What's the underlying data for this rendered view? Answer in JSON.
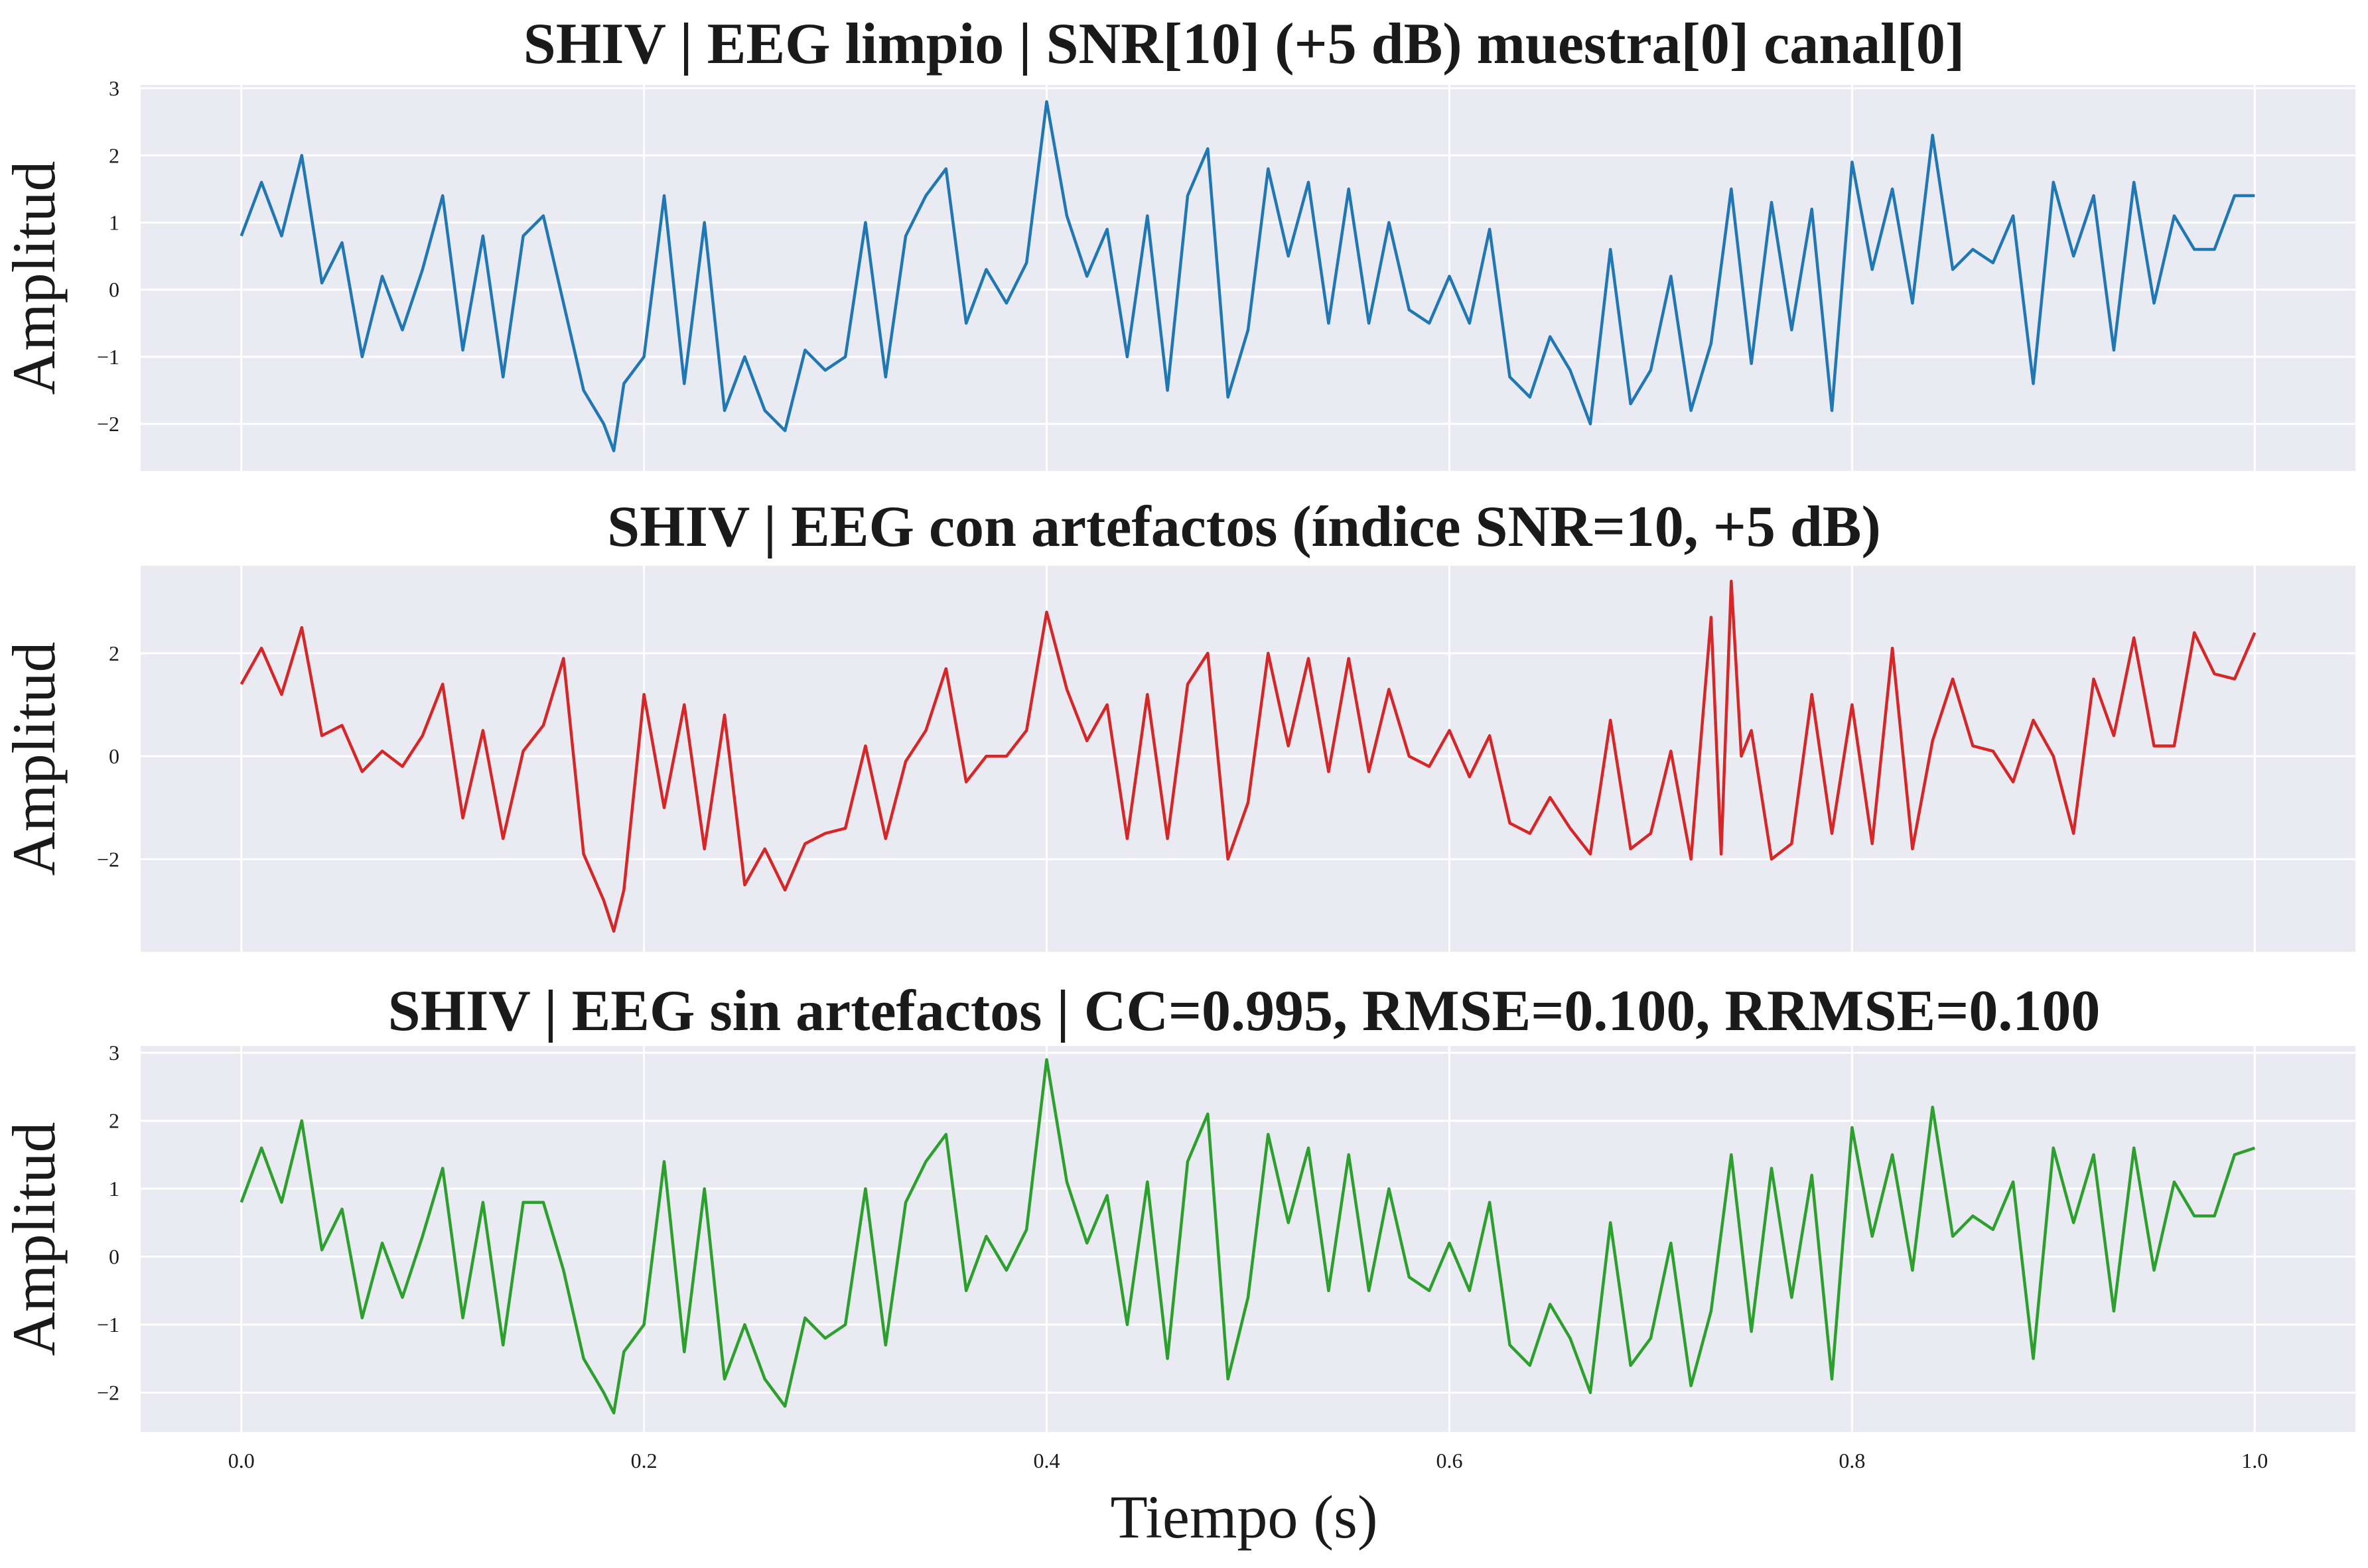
{
  "chart_data": [
    {
      "type": "line",
      "title": "SHIV | EEG limpio | SNR[10] (+5 dB) muestra[0] canal[0]",
      "xlabel": "",
      "ylabel": "Amplitud",
      "xlim": [
        -0.05,
        1.05
      ],
      "ylim": [
        -2.7,
        3.05
      ],
      "xticks": [
        0.0,
        0.2,
        0.4,
        0.6,
        0.8,
        1.0
      ],
      "xtick_labels": [
        "",
        "",
        "",
        "",
        "",
        ""
      ],
      "yticks": [
        -2,
        -1,
        0,
        1,
        2,
        3
      ],
      "ytick_labels": [
        "−2",
        "−1",
        "0",
        "1",
        "2",
        "3"
      ],
      "grid": true,
      "color": "#1f77b4",
      "series": [
        {
          "x": [
            0.0,
            0.01,
            0.02,
            0.03,
            0.04,
            0.05,
            0.06,
            0.07,
            0.08,
            0.09,
            0.1,
            0.11,
            0.12,
            0.13,
            0.14,
            0.15,
            0.16,
            0.17,
            0.18,
            0.185,
            0.19,
            0.2,
            0.21,
            0.22,
            0.23,
            0.24,
            0.25,
            0.26,
            0.27,
            0.28,
            0.29,
            0.3,
            0.31,
            0.32,
            0.33,
            0.34,
            0.35,
            0.36,
            0.37,
            0.38,
            0.39,
            0.4,
            0.41,
            0.42,
            0.43,
            0.44,
            0.45,
            0.46,
            0.47,
            0.48,
            0.49,
            0.5,
            0.51,
            0.52,
            0.53,
            0.54,
            0.55,
            0.56,
            0.57,
            0.58,
            0.59,
            0.6,
            0.61,
            0.62,
            0.63,
            0.64,
            0.65,
            0.66,
            0.67,
            0.68,
            0.69,
            0.7,
            0.71,
            0.72,
            0.73,
            0.74,
            0.75,
            0.76,
            0.77,
            0.78,
            0.79,
            0.8,
            0.81,
            0.82,
            0.83,
            0.84,
            0.85,
            0.86,
            0.87,
            0.88,
            0.89,
            0.9,
            0.91,
            0.92,
            0.93,
            0.94,
            0.95,
            0.96,
            0.97,
            0.98,
            0.99,
            1.0
          ],
          "y": [
            0.8,
            1.6,
            0.8,
            2.0,
            0.1,
            0.7,
            -1.0,
            0.2,
            -0.6,
            0.3,
            1.4,
            -0.9,
            0.8,
            -1.3,
            0.8,
            1.1,
            -0.2,
            -1.5,
            -2.0,
            -2.4,
            -1.4,
            -1.0,
            1.4,
            -1.4,
            1.0,
            -1.8,
            -1.0,
            -1.8,
            -2.1,
            -0.9,
            -1.2,
            -1.0,
            1.0,
            -1.3,
            0.8,
            1.4,
            1.8,
            -0.5,
            0.3,
            -0.2,
            0.4,
            2.8,
            1.1,
            0.2,
            0.9,
            -1.0,
            1.1,
            -1.5,
            1.4,
            2.1,
            -1.6,
            -0.6,
            1.8,
            0.5,
            1.6,
            -0.5,
            1.5,
            -0.5,
            1.0,
            -0.3,
            -0.5,
            0.2,
            -0.5,
            0.9,
            -1.3,
            -1.6,
            -0.7,
            -1.2,
            -2.0,
            0.6,
            -1.7,
            -1.2,
            0.2,
            -1.8,
            -0.8,
            1.5,
            -1.1,
            1.3,
            -0.6,
            1.2,
            -1.8,
            1.9,
            0.3,
            1.5,
            -0.2,
            2.3,
            0.3,
            0.6,
            0.4,
            1.1,
            -1.4,
            1.6,
            0.5,
            1.4,
            -0.9,
            1.6,
            -0.2,
            1.1,
            0.6,
            0.6,
            1.4,
            1.4
          ]
        }
      ]
    },
    {
      "type": "line",
      "title": "SHIV | EEG con artefactos (índice SNR=10, +5 dB)",
      "xlabel": "",
      "ylabel": "Amplitud",
      "xlim": [
        -0.05,
        1.05
      ],
      "ylim": [
        -3.8,
        3.7
      ],
      "xticks": [
        0.0,
        0.2,
        0.4,
        0.6,
        0.8,
        1.0
      ],
      "xtick_labels": [
        "",
        "",
        "",
        "",
        "",
        ""
      ],
      "yticks": [
        -2,
        0,
        2
      ],
      "ytick_labels": [
        "−2",
        "0",
        "2"
      ],
      "grid": true,
      "color": "#d62728",
      "series": [
        {
          "x": [
            0.0,
            0.01,
            0.02,
            0.03,
            0.04,
            0.05,
            0.06,
            0.07,
            0.08,
            0.09,
            0.1,
            0.11,
            0.12,
            0.13,
            0.14,
            0.15,
            0.16,
            0.17,
            0.18,
            0.185,
            0.19,
            0.2,
            0.21,
            0.22,
            0.23,
            0.24,
            0.25,
            0.26,
            0.27,
            0.28,
            0.29,
            0.3,
            0.31,
            0.32,
            0.33,
            0.34,
            0.35,
            0.36,
            0.37,
            0.38,
            0.39,
            0.4,
            0.41,
            0.42,
            0.43,
            0.44,
            0.45,
            0.46,
            0.47,
            0.48,
            0.49,
            0.5,
            0.51,
            0.52,
            0.53,
            0.54,
            0.55,
            0.56,
            0.57,
            0.58,
            0.59,
            0.6,
            0.61,
            0.62,
            0.63,
            0.64,
            0.65,
            0.66,
            0.67,
            0.68,
            0.69,
            0.7,
            0.71,
            0.72,
            0.73,
            0.735,
            0.74,
            0.745,
            0.75,
            0.76,
            0.77,
            0.78,
            0.79,
            0.8,
            0.81,
            0.82,
            0.83,
            0.84,
            0.85,
            0.86,
            0.87,
            0.88,
            0.89,
            0.9,
            0.91,
            0.92,
            0.93,
            0.94,
            0.95,
            0.96,
            0.97,
            0.98,
            0.99,
            1.0
          ],
          "y": [
            1.4,
            2.1,
            1.2,
            2.5,
            0.4,
            0.6,
            -0.3,
            0.1,
            -0.2,
            0.4,
            1.4,
            -1.2,
            0.5,
            -1.6,
            0.1,
            0.6,
            1.9,
            -1.9,
            -2.8,
            -3.4,
            -2.6,
            1.2,
            -1.0,
            1.0,
            -1.8,
            0.8,
            -2.5,
            -1.8,
            -2.6,
            -1.7,
            -1.5,
            -1.4,
            0.2,
            -1.6,
            -0.1,
            0.5,
            1.7,
            -0.5,
            0.0,
            0.0,
            0.5,
            2.8,
            1.3,
            0.3,
            1.0,
            -1.6,
            1.2,
            -1.6,
            1.4,
            2.0,
            -2.0,
            -0.9,
            2.0,
            0.2,
            1.9,
            -0.3,
            1.9,
            -0.3,
            1.3,
            0.0,
            -0.2,
            0.5,
            -0.4,
            0.4,
            -1.3,
            -1.5,
            -0.8,
            -1.4,
            -1.9,
            0.7,
            -1.8,
            -1.5,
            0.1,
            -2.0,
            2.7,
            -1.9,
            3.4,
            0.0,
            0.5,
            -2.0,
            -1.7,
            1.2,
            -1.5,
            1.0,
            -1.7,
            2.1,
            -1.8,
            0.3,
            1.5,
            0.2,
            0.1,
            -0.5,
            0.7,
            0.0,
            -1.5,
            1.5,
            0.4,
            2.3,
            0.2,
            0.2,
            2.4,
            1.6,
            1.5,
            2.4
          ]
        }
      ]
    },
    {
      "type": "line",
      "title": "SHIV | EEG sin artefactos | CC=0.995, RMSE=0.100, RRMSE=0.100",
      "xlabel": "Tiempo (s)",
      "ylabel": "Amplitud",
      "xlim": [
        -0.05,
        1.05
      ],
      "ylim": [
        -2.58,
        3.1
      ],
      "xticks": [
        0.0,
        0.2,
        0.4,
        0.6,
        0.8,
        1.0
      ],
      "xtick_labels": [
        "0.0",
        "0.2",
        "0.4",
        "0.6",
        "0.8",
        "1.0"
      ],
      "yticks": [
        -2,
        -1,
        0,
        1,
        2,
        3
      ],
      "ytick_labels": [
        "−2",
        "−1",
        "0",
        "1",
        "2",
        "3"
      ],
      "grid": true,
      "color": "#2ca02c",
      "series": [
        {
          "x": [
            0.0,
            0.01,
            0.02,
            0.03,
            0.04,
            0.05,
            0.06,
            0.07,
            0.08,
            0.09,
            0.1,
            0.11,
            0.12,
            0.13,
            0.14,
            0.15,
            0.16,
            0.17,
            0.18,
            0.185,
            0.19,
            0.2,
            0.21,
            0.22,
            0.23,
            0.24,
            0.25,
            0.26,
            0.27,
            0.28,
            0.29,
            0.3,
            0.31,
            0.32,
            0.33,
            0.34,
            0.35,
            0.36,
            0.37,
            0.38,
            0.39,
            0.4,
            0.41,
            0.42,
            0.43,
            0.44,
            0.45,
            0.46,
            0.47,
            0.48,
            0.49,
            0.5,
            0.51,
            0.52,
            0.53,
            0.54,
            0.55,
            0.56,
            0.57,
            0.58,
            0.59,
            0.6,
            0.61,
            0.62,
            0.63,
            0.64,
            0.65,
            0.66,
            0.67,
            0.68,
            0.69,
            0.7,
            0.71,
            0.72,
            0.73,
            0.74,
            0.75,
            0.76,
            0.77,
            0.78,
            0.79,
            0.8,
            0.81,
            0.82,
            0.83,
            0.84,
            0.85,
            0.86,
            0.87,
            0.88,
            0.89,
            0.9,
            0.91,
            0.92,
            0.93,
            0.94,
            0.95,
            0.96,
            0.97,
            0.98,
            0.99,
            1.0
          ],
          "y": [
            0.8,
            1.6,
            0.8,
            2.0,
            0.1,
            0.7,
            -0.9,
            0.2,
            -0.6,
            0.3,
            1.3,
            -0.9,
            0.8,
            -1.3,
            0.8,
            0.8,
            -0.2,
            -1.5,
            -2.0,
            -2.3,
            -1.4,
            -1.0,
            1.4,
            -1.4,
            1.0,
            -1.8,
            -1.0,
            -1.8,
            -2.2,
            -0.9,
            -1.2,
            -1.0,
            1.0,
            -1.3,
            0.8,
            1.4,
            1.8,
            -0.5,
            0.3,
            -0.2,
            0.4,
            2.9,
            1.1,
            0.2,
            0.9,
            -1.0,
            1.1,
            -1.5,
            1.4,
            2.1,
            -1.8,
            -0.6,
            1.8,
            0.5,
            1.6,
            -0.5,
            1.5,
            -0.5,
            1.0,
            -0.3,
            -0.5,
            0.2,
            -0.5,
            0.8,
            -1.3,
            -1.6,
            -0.7,
            -1.2,
            -2.0,
            0.5,
            -1.6,
            -1.2,
            0.2,
            -1.9,
            -0.8,
            1.5,
            -1.1,
            1.3,
            -0.6,
            1.2,
            -1.8,
            1.9,
            0.3,
            1.5,
            -0.2,
            2.2,
            0.3,
            0.6,
            0.4,
            1.1,
            -1.5,
            1.6,
            0.5,
            1.5,
            -0.8,
            1.6,
            -0.2,
            1.1,
            0.6,
            0.6,
            1.5,
            1.6
          ]
        }
      ]
    }
  ]
}
